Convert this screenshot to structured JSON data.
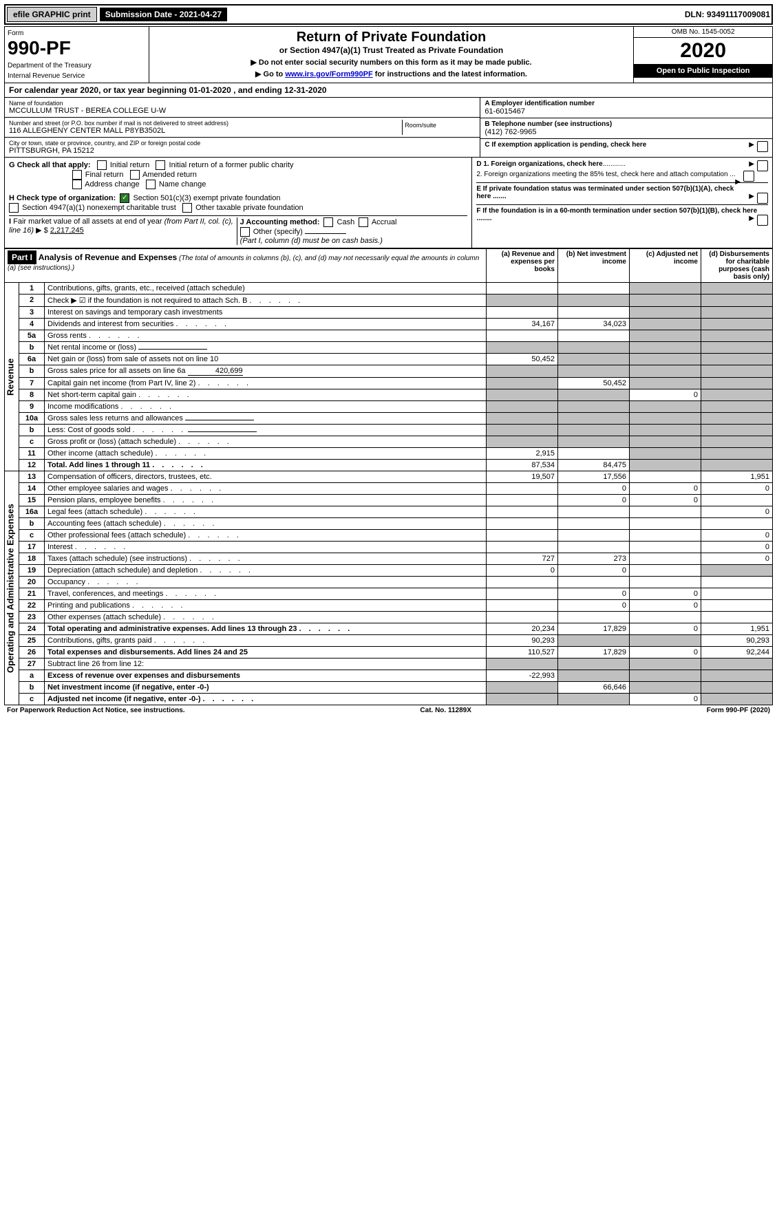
{
  "top": {
    "efile": "efile GRAPHIC print",
    "subdate_label": "Submission Date - 2021-04-27",
    "dln": "DLN: 93491117009081"
  },
  "header": {
    "form_word": "Form",
    "form_no": "990-PF",
    "dept": "Department of the Treasury",
    "irs": "Internal Revenue Service",
    "title": "Return of Private Foundation",
    "subtitle": "or Section 4947(a)(1) Trust Treated as Private Foundation",
    "notice1": "▶ Do not enter social security numbers on this form as it may be made public.",
    "notice2_pre": "▶ Go to ",
    "notice2_link": "www.irs.gov/Form990PF",
    "notice2_post": " for instructions and the latest information.",
    "omb": "OMB No. 1545-0052",
    "year": "2020",
    "inspect": "Open to Public Inspection"
  },
  "calyear": "For calendar year 2020, or tax year beginning 01-01-2020                        , and ending 12-31-2020",
  "info": {
    "name_label": "Name of foundation",
    "name": "MCCULLUM TRUST - BEREA COLLEGE U-W",
    "addr_label": "Number and street (or P.O. box number if mail is not delivered to street address)",
    "addr": "116 ALLEGHENY CENTER MALL P8YB3502L",
    "room_label": "Room/suite",
    "city_label": "City or town, state or province, country, and ZIP or foreign postal code",
    "city": "PITTSBURGH, PA  15212",
    "a_label": "A Employer identification number",
    "a_val": "61-6015467",
    "b_label": "B Telephone number (see instructions)",
    "b_val": "(412) 762-9965",
    "c_label": "C If exemption application is pending, check here"
  },
  "checks": {
    "g_label": "G Check all that apply:",
    "g1": "Initial return",
    "g2": "Initial return of a former public charity",
    "g3": "Final return",
    "g4": "Amended return",
    "g5": "Address change",
    "g6": "Name change",
    "h_label": "H Check type of organization:",
    "h1": "Section 501(c)(3) exempt private foundation",
    "h2": "Section 4947(a)(1) nonexempt charitable trust",
    "h3": "Other taxable private foundation",
    "i_label": "I Fair market value of all assets at end of year (from Part II, col. (c), line 16) ▶ $",
    "i_val": "2,217,245",
    "j_label": "J Accounting method:",
    "j1": "Cash",
    "j2": "Accrual",
    "j3": "Other (specify)",
    "j_note": "(Part I, column (d) must be on cash basis.)",
    "d1": "D 1. Foreign organizations, check here",
    "d2": "2. Foreign organizations meeting the 85% test, check here and attach computation ...",
    "e": "E  If private foundation status was terminated under section 507(b)(1)(A), check here .......",
    "f": "F  If the foundation is in a 60-month termination under section 507(b)(1)(B), check here ........"
  },
  "part1": {
    "label": "Part I",
    "title": "Analysis of Revenue and Expenses",
    "title_note": "(The total of amounts in columns (b), (c), and (d) may not necessarily equal the amounts in column (a) (see instructions).)",
    "col_a": "(a)  Revenue and expenses per books",
    "col_b": "(b)  Net investment income",
    "col_c": "(c)  Adjusted net income",
    "col_d": "(d)  Disbursements for charitable purposes (cash basis only)",
    "side_rev": "Revenue",
    "side_exp": "Operating and Administrative Expenses"
  },
  "rows": [
    {
      "n": "1",
      "d": "Contributions, gifts, grants, etc., received (attach schedule)",
      "a": "",
      "b": "",
      "c": "sh",
      "dd": "sh"
    },
    {
      "n": "2",
      "d": "Check ▶ ☑ if the foundation is not required to attach Sch. B",
      "a": "sh",
      "b": "sh",
      "c": "sh",
      "dd": "sh",
      "dots": true
    },
    {
      "n": "3",
      "d": "Interest on savings and temporary cash investments",
      "a": "",
      "b": "",
      "c": "sh",
      "dd": "sh"
    },
    {
      "n": "4",
      "d": "Dividends and interest from securities",
      "a": "34,167",
      "b": "34,023",
      "c": "sh",
      "dd": "sh",
      "dots": true
    },
    {
      "n": "5a",
      "d": "Gross rents",
      "a": "",
      "b": "",
      "c": "sh",
      "dd": "sh",
      "dots": true
    },
    {
      "n": "b",
      "d": "Net rental income or (loss)",
      "a": "sh",
      "b": "sh",
      "c": "sh",
      "dd": "sh",
      "underline": true
    },
    {
      "n": "6a",
      "d": "Net gain or (loss) from sale of assets not on line 10",
      "a": "50,452",
      "b": "sh",
      "c": "sh",
      "dd": "sh"
    },
    {
      "n": "b",
      "d": "Gross sales price for all assets on line 6a",
      "a": "sh",
      "b": "sh",
      "c": "sh",
      "dd": "sh",
      "inline": "420,699"
    },
    {
      "n": "7",
      "d": "Capital gain net income (from Part IV, line 2)",
      "a": "sh",
      "b": "50,452",
      "c": "sh",
      "dd": "sh",
      "dots": true
    },
    {
      "n": "8",
      "d": "Net short-term capital gain",
      "a": "sh",
      "b": "sh",
      "c": "0",
      "dd": "sh",
      "dots": true
    },
    {
      "n": "9",
      "d": "Income modifications",
      "a": "sh",
      "b": "sh",
      "c": "sh",
      "dd": "sh",
      "dots": true
    },
    {
      "n": "10a",
      "d": "Gross sales less returns and allowances",
      "a": "sh",
      "b": "sh",
      "c": "sh",
      "dd": "sh",
      "underline": true
    },
    {
      "n": "b",
      "d": "Less: Cost of goods sold",
      "a": "sh",
      "b": "sh",
      "c": "sh",
      "dd": "sh",
      "dots": true,
      "underline": true
    },
    {
      "n": "c",
      "d": "Gross profit or (loss) (attach schedule)",
      "a": "sh",
      "b": "sh",
      "c": "sh",
      "dd": "sh",
      "dots": true
    },
    {
      "n": "11",
      "d": "Other income (attach schedule)",
      "a": "2,915",
      "b": "",
      "c": "sh",
      "dd": "sh",
      "dots": true
    },
    {
      "n": "12",
      "d": "Total. Add lines 1 through 11",
      "a": "87,534",
      "b": "84,475",
      "c": "sh",
      "dd": "sh",
      "dots": true,
      "bold": true
    },
    {
      "n": "13",
      "d": "Compensation of officers, directors, trustees, etc.",
      "a": "19,507",
      "b": "17,556",
      "c": "",
      "dd": "1,951"
    },
    {
      "n": "14",
      "d": "Other employee salaries and wages",
      "a": "",
      "b": "0",
      "c": "0",
      "dd": "0",
      "dots": true
    },
    {
      "n": "15",
      "d": "Pension plans, employee benefits",
      "a": "",
      "b": "0",
      "c": "0",
      "dd": "",
      "dots": true
    },
    {
      "n": "16a",
      "d": "Legal fees (attach schedule)",
      "a": "",
      "b": "",
      "c": "",
      "dd": "0",
      "dots": true
    },
    {
      "n": "b",
      "d": "Accounting fees (attach schedule)",
      "a": "",
      "b": "",
      "c": "",
      "dd": "",
      "dots": true
    },
    {
      "n": "c",
      "d": "Other professional fees (attach schedule)",
      "a": "",
      "b": "",
      "c": "",
      "dd": "0",
      "dots": true
    },
    {
      "n": "17",
      "d": "Interest",
      "a": "",
      "b": "",
      "c": "",
      "dd": "0",
      "dots": true
    },
    {
      "n": "18",
      "d": "Taxes (attach schedule) (see instructions)",
      "a": "727",
      "b": "273",
      "c": "",
      "dd": "0",
      "dots": true
    },
    {
      "n": "19",
      "d": "Depreciation (attach schedule) and depletion",
      "a": "0",
      "b": "0",
      "c": "",
      "dd": "sh",
      "dots": true
    },
    {
      "n": "20",
      "d": "Occupancy",
      "a": "",
      "b": "",
      "c": "",
      "dd": "",
      "dots": true
    },
    {
      "n": "21",
      "d": "Travel, conferences, and meetings",
      "a": "",
      "b": "0",
      "c": "0",
      "dd": "",
      "dots": true
    },
    {
      "n": "22",
      "d": "Printing and publications",
      "a": "",
      "b": "0",
      "c": "0",
      "dd": "",
      "dots": true
    },
    {
      "n": "23",
      "d": "Other expenses (attach schedule)",
      "a": "",
      "b": "",
      "c": "",
      "dd": "",
      "dots": true
    },
    {
      "n": "24",
      "d": "Total operating and administrative expenses. Add lines 13 through 23",
      "a": "20,234",
      "b": "17,829",
      "c": "0",
      "dd": "1,951",
      "dots": true,
      "bold": true
    },
    {
      "n": "25",
      "d": "Contributions, gifts, grants paid",
      "a": "90,293",
      "b": "sh",
      "c": "sh",
      "dd": "90,293",
      "dots": true
    },
    {
      "n": "26",
      "d": "Total expenses and disbursements. Add lines 24 and 25",
      "a": "110,527",
      "b": "17,829",
      "c": "0",
      "dd": "92,244",
      "bold": true
    },
    {
      "n": "27",
      "d": "Subtract line 26 from line 12:",
      "a": "sh",
      "b": "sh",
      "c": "sh",
      "dd": "sh"
    },
    {
      "n": "a",
      "d": "Excess of revenue over expenses and disbursements",
      "a": "-22,993",
      "b": "sh",
      "c": "sh",
      "dd": "sh",
      "bold": true
    },
    {
      "n": "b",
      "d": "Net investment income (if negative, enter -0-)",
      "a": "sh",
      "b": "66,646",
      "c": "sh",
      "dd": "sh",
      "bold": true
    },
    {
      "n": "c",
      "d": "Adjusted net income (if negative, enter -0-)",
      "a": "sh",
      "b": "sh",
      "c": "0",
      "dd": "sh",
      "bold": true,
      "dots": true
    }
  ],
  "footer": {
    "left": "For Paperwork Reduction Act Notice, see instructions.",
    "mid": "Cat. No. 11289X",
    "right": "Form 990-PF (2020)"
  }
}
